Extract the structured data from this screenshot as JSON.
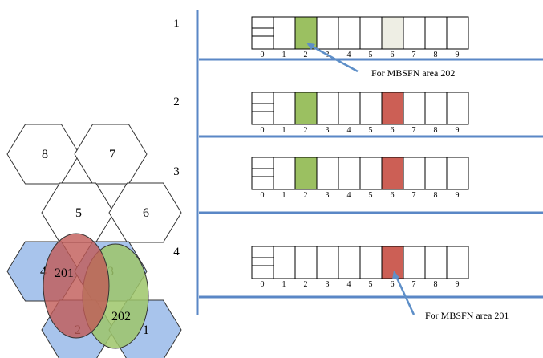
{
  "colors": {
    "divider": "#5a87c6",
    "cell_border": "#000000",
    "green": "#9bc061",
    "red": "#cc5f55",
    "pale": "#eeeee4",
    "hex_blue": "#a8c4ec",
    "ellipse_red": "#c05a56",
    "ellipse_green": "#9ec56a",
    "arrow": "#5e8fc8"
  },
  "rows": [
    {
      "label": "1",
      "highlights": [
        {
          "index": 2,
          "color": "green"
        },
        {
          "index": 6,
          "color": "pale"
        }
      ]
    },
    {
      "label": "2",
      "highlights": [
        {
          "index": 2,
          "color": "green"
        },
        {
          "index": 6,
          "color": "red"
        }
      ]
    },
    {
      "label": "3",
      "highlights": [
        {
          "index": 2,
          "color": "green"
        },
        {
          "index": 6,
          "color": "red"
        }
      ]
    },
    {
      "label": "4",
      "highlights": [
        {
          "index": 6,
          "color": "red"
        }
      ]
    }
  ],
  "subframe_numbers": [
    "0",
    "1",
    "2",
    "3",
    "4",
    "5",
    "6",
    "7",
    "8",
    "9"
  ],
  "annotations": {
    "area_202": "For MBSFN area 202",
    "area_201": "For MBSFN area 201"
  },
  "cells": [
    {
      "label": "8",
      "blue": false
    },
    {
      "label": "7",
      "blue": false
    },
    {
      "label": "5",
      "blue": false
    },
    {
      "label": "6",
      "blue": false
    },
    {
      "label": "4",
      "blue": true
    },
    {
      "label": "3",
      "blue": true
    },
    {
      "label": "2",
      "blue": true
    },
    {
      "label": "1",
      "blue": true
    }
  ],
  "areas": {
    "a201": "201",
    "a202": "202"
  }
}
